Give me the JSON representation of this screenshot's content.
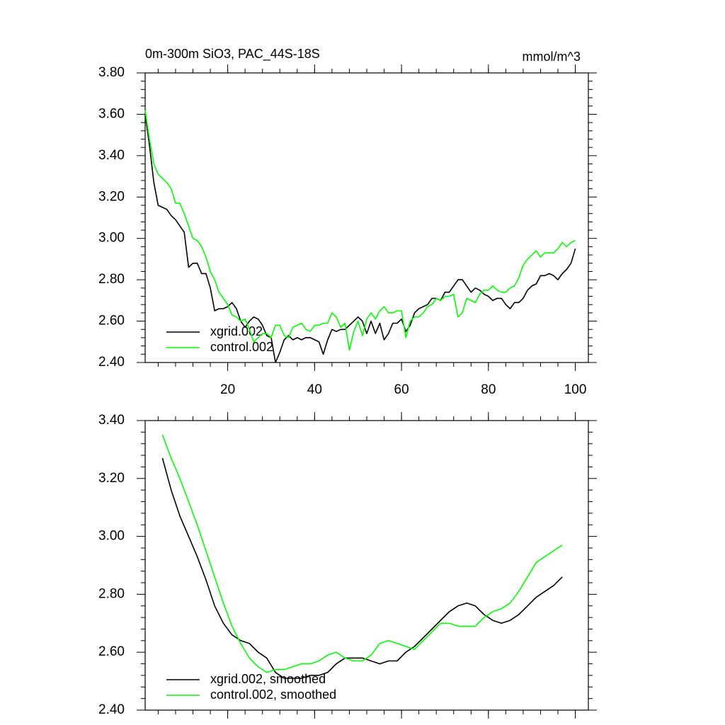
{
  "chart_data": [
    {
      "type": "line",
      "title": "0m-300m SiO3, PAC_44S-18S",
      "units": "mmol/m^3",
      "x": [
        1,
        2,
        3,
        4,
        5,
        6,
        7,
        8,
        9,
        10,
        11,
        12,
        13,
        14,
        15,
        16,
        17,
        18,
        19,
        20,
        21,
        22,
        23,
        24,
        25,
        26,
        27,
        28,
        29,
        30,
        31,
        32,
        33,
        34,
        35,
        36,
        37,
        38,
        39,
        40,
        41,
        42,
        43,
        44,
        45,
        46,
        47,
        48,
        49,
        50,
        51,
        52,
        53,
        54,
        55,
        56,
        57,
        58,
        59,
        60,
        61,
        62,
        63,
        64,
        65,
        66,
        67,
        68,
        69,
        70,
        71,
        72,
        73,
        74,
        75,
        76,
        77,
        78,
        79,
        80,
        81,
        82,
        83,
        84,
        85,
        86,
        87,
        88,
        89,
        90,
        91,
        92,
        93,
        94,
        95,
        96,
        97,
        98,
        99,
        100
      ],
      "series": [
        {
          "name": "xgrid.002",
          "color": "#000000",
          "values": [
            3.6,
            3.45,
            3.27,
            3.16,
            3.15,
            3.14,
            3.11,
            3.09,
            3.06,
            3.03,
            2.86,
            2.88,
            2.88,
            2.83,
            2.83,
            2.76,
            2.65,
            2.66,
            2.66,
            2.67,
            2.69,
            2.66,
            2.6,
            2.57,
            2.6,
            2.62,
            2.61,
            2.58,
            2.53,
            2.52,
            2.4,
            2.45,
            2.51,
            2.53,
            2.51,
            2.52,
            2.51,
            2.52,
            2.52,
            2.51,
            2.5,
            2.44,
            2.51,
            2.56,
            2.55,
            2.56,
            2.56,
            2.58,
            2.6,
            2.62,
            2.6,
            2.54,
            2.6,
            2.54,
            2.59,
            2.51,
            2.54,
            2.59,
            2.59,
            2.61,
            2.55,
            2.58,
            2.64,
            2.66,
            2.67,
            2.68,
            2.71,
            2.71,
            2.7,
            2.74,
            2.74,
            2.77,
            2.8,
            2.8,
            2.77,
            2.74,
            2.76,
            2.75,
            2.73,
            2.72,
            2.7,
            2.71,
            2.71,
            2.68,
            2.66,
            2.69,
            2.69,
            2.71,
            2.75,
            2.77,
            2.78,
            2.82,
            2.82,
            2.83,
            2.82,
            2.8,
            2.83,
            2.85,
            2.88,
            2.95
          ]
        },
        {
          "name": "control.002",
          "color": "#00ff00",
          "values": [
            3.62,
            3.48,
            3.36,
            3.31,
            3.29,
            3.27,
            3.24,
            3.17,
            3.17,
            3.12,
            3.06,
            3.0,
            2.99,
            2.96,
            2.91,
            2.84,
            2.8,
            2.74,
            2.71,
            2.68,
            2.63,
            2.62,
            2.6,
            2.61,
            2.56,
            2.5,
            2.52,
            2.54,
            2.54,
            2.52,
            2.58,
            2.58,
            2.53,
            2.52,
            2.57,
            2.58,
            2.59,
            2.56,
            2.55,
            2.58,
            2.58,
            2.59,
            2.59,
            2.64,
            2.62,
            2.57,
            2.59,
            2.46,
            2.55,
            2.6,
            2.53,
            2.61,
            2.64,
            2.61,
            2.65,
            2.67,
            2.64,
            2.64,
            2.65,
            2.65,
            2.52,
            2.6,
            2.62,
            2.62,
            2.64,
            2.67,
            2.68,
            2.71,
            2.7,
            2.72,
            2.72,
            2.73,
            2.62,
            2.64,
            2.71,
            2.7,
            2.69,
            2.73,
            2.75,
            2.75,
            2.77,
            2.75,
            2.74,
            2.74,
            2.76,
            2.77,
            2.81,
            2.87,
            2.9,
            2.92,
            2.94,
            2.91,
            2.93,
            2.93,
            2.93,
            2.95,
            2.98,
            2.96,
            2.98,
            2.99
          ]
        }
      ],
      "xlim": [
        1,
        103
      ],
      "xticks": [
        20,
        40,
        60,
        80,
        100
      ],
      "ylim": [
        2.4,
        3.8
      ],
      "yticks": [
        {
          "value": 2.4,
          "label": "2.40"
        },
        {
          "value": 2.6,
          "label": "2.60"
        },
        {
          "value": 2.8,
          "label": "2.80"
        },
        {
          "value": 3.0,
          "label": "3.00"
        },
        {
          "value": 3.2,
          "label": "3.20"
        },
        {
          "value": 3.4,
          "label": "3.40"
        },
        {
          "value": 3.6,
          "label": "3.60"
        },
        {
          "value": 3.8,
          "label": "3.80"
        }
      ],
      "legend": "lower left"
    },
    {
      "type": "line",
      "x": [
        5,
        7,
        9,
        11,
        13,
        15,
        17,
        19,
        21,
        23,
        25,
        27,
        29,
        31,
        33,
        35,
        37,
        39,
        41,
        43,
        45,
        47,
        49,
        51,
        53,
        55,
        57,
        59,
        61,
        63,
        65,
        67,
        69,
        71,
        73,
        75,
        77,
        79,
        81,
        83,
        85,
        87,
        89,
        91,
        93,
        95,
        97
      ],
      "series": [
        {
          "name": "xgrid.002, smoothed",
          "color": "#000000",
          "values": [
            3.27,
            3.16,
            3.07,
            3.0,
            2.93,
            2.85,
            2.76,
            2.7,
            2.66,
            2.64,
            2.63,
            2.6,
            2.58,
            2.53,
            2.51,
            2.51,
            2.51,
            2.52,
            2.52,
            2.53,
            2.56,
            2.58,
            2.58,
            2.58,
            2.57,
            2.56,
            2.57,
            2.57,
            2.6,
            2.62,
            2.65,
            2.68,
            2.71,
            2.74,
            2.76,
            2.77,
            2.76,
            2.73,
            2.71,
            2.7,
            2.71,
            2.73,
            2.76,
            2.79,
            2.81,
            2.83,
            2.86
          ]
        },
        {
          "name": "control.002, smoothed",
          "color": "#00ff00",
          "values": [
            3.35,
            3.27,
            3.2,
            3.12,
            3.04,
            2.95,
            2.86,
            2.77,
            2.69,
            2.63,
            2.58,
            2.55,
            2.53,
            2.54,
            2.54,
            2.55,
            2.56,
            2.56,
            2.57,
            2.59,
            2.6,
            2.58,
            2.57,
            2.57,
            2.59,
            2.63,
            2.64,
            2.63,
            2.62,
            2.61,
            2.64,
            2.67,
            2.7,
            2.7,
            2.69,
            2.69,
            2.69,
            2.72,
            2.74,
            2.75,
            2.77,
            2.81,
            2.86,
            2.91,
            2.93,
            2.95,
            2.97
          ]
        }
      ],
      "xlim": [
        1,
        103
      ],
      "xticks": [
        20,
        40,
        60,
        80,
        100
      ],
      "xtick_labels": false,
      "ylim": [
        2.4,
        3.4
      ],
      "yticks": [
        {
          "value": 2.4,
          "label": "2.40"
        },
        {
          "value": 2.6,
          "label": "2.60"
        },
        {
          "value": 2.8,
          "label": "2.80"
        },
        {
          "value": 3.0,
          "label": "3.00"
        },
        {
          "value": 3.2,
          "label": "3.20"
        },
        {
          "value": 3.4,
          "label": "3.40"
        }
      ],
      "legend": "lower left"
    }
  ]
}
